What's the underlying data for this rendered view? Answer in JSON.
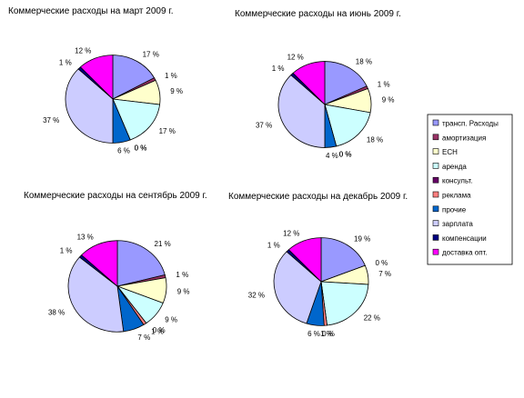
{
  "legend": {
    "entries": [
      {
        "label": "трансп. Расходы",
        "color": "#9999FF"
      },
      {
        "label": "амортизация",
        "color": "#993366"
      },
      {
        "label": "ЕСН",
        "color": "#FFFFCC"
      },
      {
        "label": "аренда",
        "color": "#CCFFFF"
      },
      {
        "label": "консульт.",
        "color": "#660066"
      },
      {
        "label": "реклама",
        "color": "#FF8080"
      },
      {
        "label": "прочие",
        "color": "#0066CC"
      },
      {
        "label": "зарплата",
        "color": "#CCCCFF"
      },
      {
        "label": "компенсации",
        "color": "#000080"
      },
      {
        "label": "доставка опт.",
        "color": "#FF00FF"
      }
    ]
  },
  "chart_data": [
    {
      "type": "pie",
      "title": "Коммерческие расходы на март 2009 г.",
      "categories": [
        "трансп. Расходы",
        "амортизация",
        "ЕСН",
        "аренда",
        "консульт.",
        "реклама",
        "прочие",
        "зарплата",
        "компенсации",
        "доставка опт."
      ],
      "values": [
        17,
        1,
        9,
        17,
        0,
        0,
        6,
        37,
        1,
        12
      ],
      "labels": [
        "17 %",
        "1 %",
        "9 %",
        "17 %",
        "0 %",
        "0 %",
        "6 %",
        "37 %",
        "1 %",
        "12 %"
      ]
    },
    {
      "type": "pie",
      "title": "Коммерческие расходы на июнь 2009 г.",
      "categories": [
        "трансп. Расходы",
        "амортизация",
        "ЕСН",
        "аренда",
        "консульт.",
        "реклама",
        "прочие",
        "зарплата",
        "компенсации",
        "доставка опт."
      ],
      "values": [
        18,
        1,
        9,
        18,
        0,
        0,
        4,
        37,
        1,
        12
      ],
      "labels": [
        "18 %",
        "1 %",
        "9 %",
        "18 %",
        "0 %",
        "0 %",
        "4 %",
        "37 %",
        "1 %",
        "12 %"
      ]
    },
    {
      "type": "pie",
      "title": "Коммерческие расходы на сентябрь 2009 г.",
      "categories": [
        "трансп. Расходы",
        "амортизация",
        "ЕСН",
        "аренда",
        "консульт.",
        "реклама",
        "прочие",
        "зарплата",
        "компенсации",
        "доставка опт."
      ],
      "values": [
        21,
        1,
        9,
        9,
        0,
        1,
        7,
        38,
        1,
        13
      ],
      "labels": [
        "21 %",
        "1 %",
        "9 %",
        "9 %",
        "0 %",
        "1 %",
        "7 %",
        "38 %",
        "1 %",
        "13 %"
      ]
    },
    {
      "type": "pie",
      "title": "Коммерческие расходы на декабрь 2009 г.",
      "categories": [
        "трансп. Расходы",
        "амортизация",
        "ЕСН",
        "аренда",
        "консульт.",
        "реклама",
        "прочие",
        "зарплата",
        "компенсации",
        "доставка опт."
      ],
      "values": [
        19,
        0,
        7,
        22,
        0,
        1,
        6,
        32,
        1,
        12
      ],
      "labels": [
        "19 %",
        "0 %",
        "7 %",
        "22 %",
        "0 %",
        "1 %",
        "6 %",
        "32 %",
        "1 %",
        "12 %"
      ]
    }
  ]
}
